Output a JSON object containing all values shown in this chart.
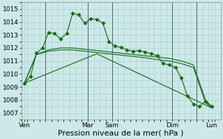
{
  "bg_color": "#cce8e8",
  "grid_color": "#aacccc",
  "line_color": "#1a6b1a",
  "series1_x": [
    0,
    1,
    2,
    3,
    4,
    5,
    6,
    7,
    8,
    9,
    10,
    11,
    12,
    13,
    14,
    15,
    16,
    17,
    18,
    19,
    20,
    21,
    22,
    23,
    24,
    25,
    26,
    27,
    28,
    29,
    30,
    31
  ],
  "series1_y": [
    1009.3,
    1009.8,
    1011.6,
    1012.0,
    1013.2,
    1013.1,
    1012.7,
    1013.1,
    1014.65,
    1014.55,
    1013.9,
    1014.25,
    1014.2,
    1013.9,
    1012.5,
    1012.15,
    1012.05,
    1011.85,
    1011.75,
    1011.8,
    1011.7,
    1011.55,
    1011.4,
    1010.8,
    1010.7,
    1010.5,
    1009.7,
    1008.3,
    1007.7,
    1007.5,
    1007.9,
    1007.5
  ],
  "series2_x": [
    0,
    2,
    4,
    6,
    8,
    10,
    12,
    14,
    16,
    18,
    20,
    22,
    24,
    26,
    28,
    30,
    31
  ],
  "series2_y": [
    1009.3,
    1011.5,
    1011.85,
    1012.0,
    1012.0,
    1011.9,
    1011.8,
    1011.7,
    1011.6,
    1011.5,
    1011.4,
    1011.3,
    1011.2,
    1011.0,
    1010.7,
    1008.0,
    1007.5
  ],
  "series3_x": [
    0,
    2,
    4,
    6,
    8,
    10,
    12,
    14,
    16,
    18,
    20,
    22,
    24,
    26,
    28,
    30,
    31
  ],
  "series3_y": [
    1009.3,
    1011.5,
    1011.75,
    1011.85,
    1011.85,
    1011.75,
    1011.65,
    1011.55,
    1011.45,
    1011.35,
    1011.25,
    1011.1,
    1011.0,
    1010.8,
    1010.5,
    1007.8,
    1007.4
  ],
  "series4_x": [
    0,
    12,
    31
  ],
  "series4_y": [
    1009.3,
    1011.55,
    1007.4
  ],
  "day_vlines": [
    3.5,
    10.5,
    14.5,
    24.5,
    28.5
  ],
  "ylim": [
    1006.5,
    1015.5
  ],
  "yticks": [
    1007,
    1008,
    1009,
    1010,
    1011,
    1012,
    1013,
    1014,
    1015
  ],
  "xlim": [
    -0.5,
    32.5
  ],
  "xtick_pos": [
    0,
    10.5,
    14.5,
    24.5,
    31
  ],
  "xtick_labels": [
    "Ven",
    "Mar",
    "Sam",
    "Dim",
    "Lun"
  ],
  "xlabel": "Pression niveau de la mer( hPa )",
  "xlabel_fontsize": 8,
  "tick_fontsize": 6.5
}
